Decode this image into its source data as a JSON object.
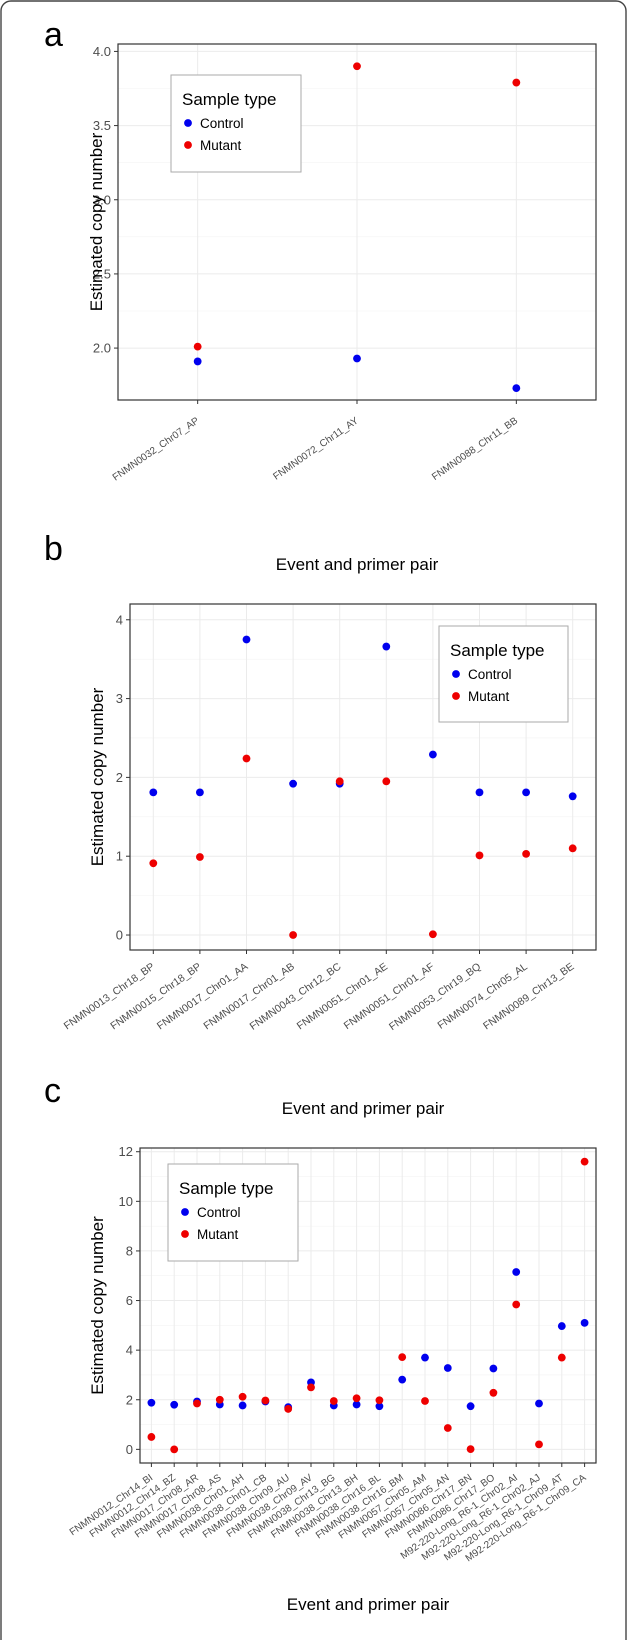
{
  "colors": {
    "control": "#0000ee",
    "mutant": "#ee0000",
    "grid": "#ebebeb",
    "axis": "#333333",
    "frame": "#444444"
  },
  "chart_data": [
    {
      "panel_label": "a",
      "type": "scatter",
      "xlabel": "Event and primer pair",
      "ylabel": "Estimated copy number",
      "ylim": [
        1.65,
        4.05
      ],
      "yticks": [
        "2.0",
        "2.5",
        "3.0",
        "3.5",
        "4.0"
      ],
      "grid": true,
      "legend": {
        "title": "Sample type",
        "entries": [
          "Control",
          "Mutant"
        ],
        "placement": "top-left"
      },
      "categories": [
        "FNMN0032_Chr07_AP",
        "FNMN0072_Chr11_AY",
        "FNMN0088_Chr11_BB"
      ],
      "series": [
        {
          "name": "Control",
          "values": [
            1.91,
            1.93,
            1.73
          ]
        },
        {
          "name": "Mutant",
          "values": [
            2.01,
            3.9,
            3.79
          ]
        }
      ]
    },
    {
      "panel_label": "b",
      "type": "scatter",
      "xlabel": "Event and primer pair",
      "ylabel": "Estimated copy number",
      "ylim": [
        -0.19,
        4.2
      ],
      "yticks": [
        "0",
        "1",
        "2",
        "3",
        "4"
      ],
      "grid": true,
      "legend": {
        "title": "Sample type",
        "entries": [
          "Control",
          "Mutant"
        ],
        "placement": "top-right"
      },
      "categories": [
        "FNMN0013_Chr18_BP",
        "FNMN0015_Chr18_BP",
        "FNMN0017_Chr01_AA",
        "FNMN0017_Chr01_AB",
        "FNMN0043_Chr12_BC",
        "FNMN0051_Chr01_AE",
        "FNMN0051_Chr01_AF",
        "FNMN0053_Chr19_BQ",
        "FNMN0074_Chr05_AL",
        "FNMN0089_Chr13_BE"
      ],
      "series": [
        {
          "name": "Control",
          "values": [
            1.81,
            1.81,
            3.75,
            1.92,
            1.92,
            3.66,
            2.29,
            1.81,
            1.81,
            1.76
          ]
        },
        {
          "name": "Mutant",
          "values": [
            0.91,
            0.99,
            2.24,
            0.0,
            1.95,
            1.95,
            0.01,
            1.01,
            1.03,
            1.1
          ]
        }
      ]
    },
    {
      "panel_label": "c",
      "type": "scatter",
      "xlabel": "Event and primer pair",
      "ylabel": "Estimated copy number",
      "ylim": [
        -0.55,
        12.15
      ],
      "yticks": [
        "0",
        "2",
        "4",
        "6",
        "8",
        "10",
        "12"
      ],
      "grid": true,
      "legend": {
        "title": "Sample type",
        "entries": [
          "Control",
          "Mutant"
        ],
        "placement": "top-left"
      },
      "categories": [
        "FNMN0012_Chr14_BI",
        "FNMN0012_Chr14_BZ",
        "FNMN0017_Chr08_AR",
        "FNMN0017_Chr08_AS",
        "FNMN0038_Chr01_AH",
        "FNMN0038_Chr01_CB",
        "FNMN0038_Chr09_AU",
        "FNMN0038_Chr09_AV",
        "FNMN0038_Chr13_BG",
        "FNMN0038_Chr13_BH",
        "FNMN0038_Chr16_BL",
        "FNMN0038_Chr16_BM",
        "FNMN0057_Chr05_AM",
        "FNMN0057_Chr05_AN",
        "FNMN0086_Chr17_BN",
        "FNMN0086_Chr17_BO",
        "M92-220-Long_R6-1_Chr02_AI",
        "M92-220-Long_R6-1_Chr02_AJ",
        "M92-220-Long_R6-1_Chr09_AT",
        "M92-220-Long_R6-1_Chr09_CA"
      ],
      "series": [
        {
          "name": "Control",
          "values": [
            1.88,
            1.8,
            1.93,
            1.81,
            1.77,
            1.93,
            1.7,
            2.7,
            1.77,
            1.81,
            1.74,
            2.81,
            3.7,
            3.28,
            1.74,
            3.26,
            7.15,
            1.85,
            4.97,
            5.1
          ]
        },
        {
          "name": "Mutant",
          "values": [
            0.5,
            0.0,
            1.85,
            2.0,
            2.12,
            1.97,
            1.63,
            2.5,
            1.95,
            2.06,
            1.98,
            3.72,
            1.95,
            0.86,
            0.01,
            2.28,
            5.84,
            0.2,
            3.7,
            11.6
          ]
        }
      ]
    }
  ]
}
